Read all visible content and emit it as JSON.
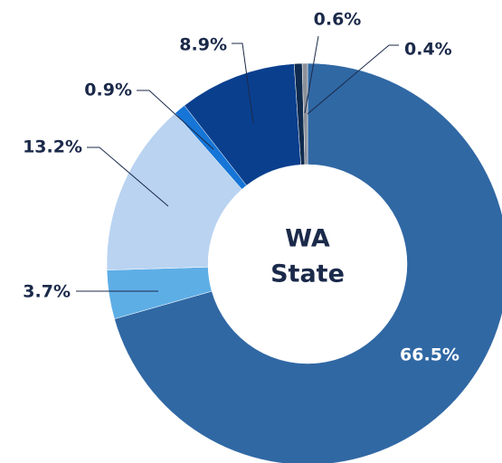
{
  "chart_data": {
    "type": "donut",
    "center_label": [
      "WA",
      "State"
    ],
    "categories": [
      null,
      null,
      null,
      null,
      null,
      null,
      null
    ],
    "values": [
      66.5,
      3.7,
      13.2,
      0.9,
      8.9,
      0.6,
      0.4
    ],
    "value_labels": [
      "66.5%",
      "3.7%",
      "13.2%",
      "0.9%",
      "8.9%",
      "0.6%",
      "0.4%"
    ],
    "colors": [
      "#3068a4",
      "#5eaee6",
      "#b9d3f1",
      "#1675d6",
      "#0a3f8e",
      "#0e2a4e",
      "#8c9099"
    ]
  }
}
